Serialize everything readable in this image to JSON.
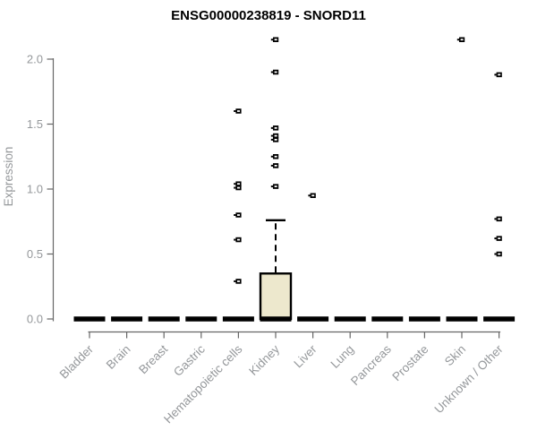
{
  "chart_data": {
    "type": "boxplot",
    "title": "ENSG00000238819 - SNORD11",
    "ylabel": "Expression",
    "xlabel": "",
    "ylim": [
      0,
      2.2
    ],
    "grid": false,
    "legend": "none",
    "yticks": [
      "0.0",
      "0.5",
      "1.0",
      "1.5",
      "2.0"
    ],
    "ytick_values": [
      0,
      0.5,
      1.0,
      1.5,
      2.0
    ],
    "categories": [
      "Bladder",
      "Brain",
      "Breast",
      "Gastric",
      "Hematopoietic cells",
      "Kidney",
      "Liver",
      "Lung",
      "Pancreas",
      "Prostate",
      "Skin",
      "Unknown / Other"
    ],
    "series": [
      {
        "name": "Bladder",
        "q1": 0,
        "median": 0,
        "q3": 0,
        "whisker_low": 0,
        "whisker_high": 0,
        "outliers": []
      },
      {
        "name": "Brain",
        "q1": 0,
        "median": 0,
        "q3": 0,
        "whisker_low": 0,
        "whisker_high": 0,
        "outliers": []
      },
      {
        "name": "Breast",
        "q1": 0,
        "median": 0,
        "q3": 0,
        "whisker_low": 0,
        "whisker_high": 0,
        "outliers": []
      },
      {
        "name": "Gastric",
        "q1": 0,
        "median": 0,
        "q3": 0,
        "whisker_low": 0,
        "whisker_high": 0,
        "outliers": []
      },
      {
        "name": "Hematopoietic cells",
        "q1": 0,
        "median": 0,
        "q3": 0,
        "whisker_low": 0,
        "whisker_high": 0,
        "outliers": [
          1.6,
          1.04,
          1.01,
          0.8,
          0.61,
          0.29
        ]
      },
      {
        "name": "Kidney",
        "q1": 0,
        "median": 0,
        "q3": 0.35,
        "whisker_low": 0,
        "whisker_high": 0.76,
        "outliers": [
          2.15,
          1.9,
          1.47,
          1.41,
          1.38,
          1.25,
          1.18,
          1.02
        ]
      },
      {
        "name": "Liver",
        "q1": 0,
        "median": 0,
        "q3": 0,
        "whisker_low": 0,
        "whisker_high": 0,
        "outliers": [
          0.95
        ]
      },
      {
        "name": "Lung",
        "q1": 0,
        "median": 0,
        "q3": 0,
        "whisker_low": 0,
        "whisker_high": 0,
        "outliers": []
      },
      {
        "name": "Pancreas",
        "q1": 0,
        "median": 0,
        "q3": 0,
        "whisker_low": 0,
        "whisker_high": 0,
        "outliers": []
      },
      {
        "name": "Prostate",
        "q1": 0,
        "median": 0,
        "q3": 0,
        "whisker_low": 0,
        "whisker_high": 0,
        "outliers": []
      },
      {
        "name": "Skin",
        "q1": 0,
        "median": 0,
        "q3": 0,
        "whisker_low": 0,
        "whisker_high": 0,
        "outliers": [
          2.15
        ]
      },
      {
        "name": "Unknown / Other",
        "q1": 0,
        "median": 0,
        "q3": 0,
        "whisker_low": 0,
        "whisker_high": 0,
        "outliers": [
          1.88,
          0.77,
          0.62,
          0.5
        ]
      }
    ],
    "colors": {
      "background": "#FFFFFF",
      "title": "#000000",
      "axis_line": "#666666",
      "axis_text": "#95989B",
      "box_fill": "#EDE8CD",
      "box_stroke": "#000000",
      "median": "#000000",
      "outlier": "#000000"
    }
  }
}
